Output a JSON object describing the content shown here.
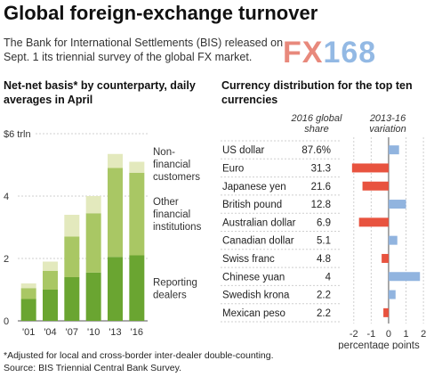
{
  "title": "Global foreign-exchange turnover",
  "subtitle": "The Bank for International Settlements (BIS) released on Sept. 1 its triennial survey of the global FX market.",
  "logo": {
    "fx": "FX",
    "num": "168"
  },
  "footnote": "*Adjusted for local and cross-border inter-dealer double-counting.",
  "source": "Source: BIS Triennial Central Bank Survey.",
  "colors": {
    "dealers": "#6aa531",
    "other": "#a9c764",
    "nonfinancial": "#e3e9bd",
    "negative": "#e8533f",
    "positive": "#91b4df"
  },
  "chart_data": [
    {
      "type": "bar",
      "title": "Net-net basis* by counterparty, daily averages in April",
      "categories": [
        "'01",
        "'04",
        "'07",
        "'10",
        "'13",
        "'16"
      ],
      "series": [
        {
          "name": "Reporting dealers",
          "values": [
            0.7,
            1.0,
            1.4,
            1.55,
            2.05,
            2.1
          ]
        },
        {
          "name": "Other financial institutions",
          "values": [
            0.35,
            0.6,
            1.3,
            1.9,
            2.85,
            2.65
          ]
        },
        {
          "name": "Non-financial customers",
          "values": [
            0.15,
            0.3,
            0.7,
            0.55,
            0.45,
            0.35
          ]
        }
      ],
      "legend": [
        {
          "lines": [
            "Non-",
            "financial",
            "customers"
          ]
        },
        {
          "lines": [
            "Other",
            "financial",
            "institutions"
          ]
        },
        {
          "lines": [
            "Reporting",
            "dealers"
          ]
        }
      ],
      "yticks": [
        "0",
        "2",
        "4",
        "$6 trln"
      ],
      "ylim": [
        0,
        6
      ]
    },
    {
      "type": "bar",
      "title": "Currency distribution for the top ten currencies",
      "col1_header": [
        "2016 global",
        "share"
      ],
      "col2_header": [
        "2013-16",
        "variation"
      ],
      "categories": [
        "US dollar",
        "Euro",
        "Japanese yen",
        "British pound",
        "Australian dollar",
        "Canadian dollar",
        "Swiss franc",
        "Chinese yuan",
        "Swedish krona",
        "Mexican peso"
      ],
      "shares": [
        "87.6%",
        "31.3",
        "21.6",
        "12.8",
        "6.9",
        "5.1",
        "4.8",
        "4",
        "2.2",
        "2.2"
      ],
      "values": [
        0.6,
        -2.1,
        -1.5,
        1.0,
        -1.7,
        0.5,
        -0.4,
        1.8,
        0.4,
        -0.3
      ],
      "xticks": [
        "-2",
        "-1",
        "0",
        "1",
        "2"
      ],
      "xlim": [
        -2.5,
        2.3
      ],
      "xlabel": "percentage points"
    }
  ]
}
